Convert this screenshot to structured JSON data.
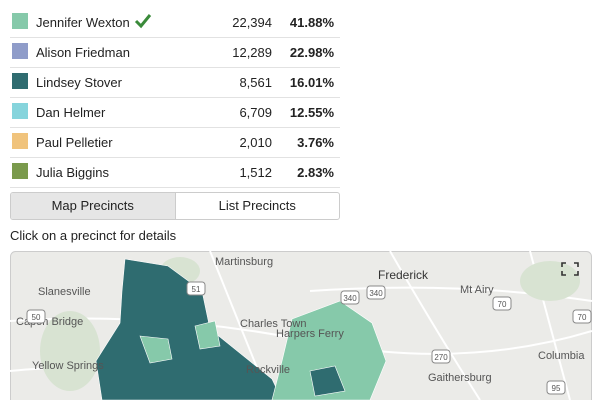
{
  "results": {
    "rows": [
      {
        "name": "Jennifer Wexton",
        "color": "#86c9aa",
        "votes": "22,394",
        "percent": "41.88%",
        "winner": true
      },
      {
        "name": "Alison Friedman",
        "color": "#8f9cc9",
        "votes": "12,289",
        "percent": "22.98%"
      },
      {
        "name": "Lindsey Stover",
        "color": "#2f6c70",
        "votes": "8,561",
        "percent": "16.01%"
      },
      {
        "name": "Dan Helmer",
        "color": "#86d4dc",
        "votes": "6,709",
        "percent": "12.55%"
      },
      {
        "name": "Paul Pelletier",
        "color": "#f0c37c",
        "votes": "2,010",
        "percent": "3.76%"
      },
      {
        "name": "Julia Biggins",
        "color": "#7a9a4c",
        "votes": "1,512",
        "percent": "2.83%"
      }
    ]
  },
  "tabs": [
    "Map Precincts",
    "List Precincts"
  ],
  "instruction": "Click on a precinct for details",
  "map": {
    "places": [
      "Martinsburg",
      "Frederick",
      "Slanesville",
      "Harpers Ferry",
      "Mt Airy",
      "Capon Bridge",
      "Charles Town",
      "Yellow Springs",
      "Columbia",
      "Gaithersburg",
      "Rockville"
    ],
    "shields": [
      "51",
      "340",
      "340",
      "70",
      "50",
      "70",
      "270",
      "95"
    ]
  }
}
